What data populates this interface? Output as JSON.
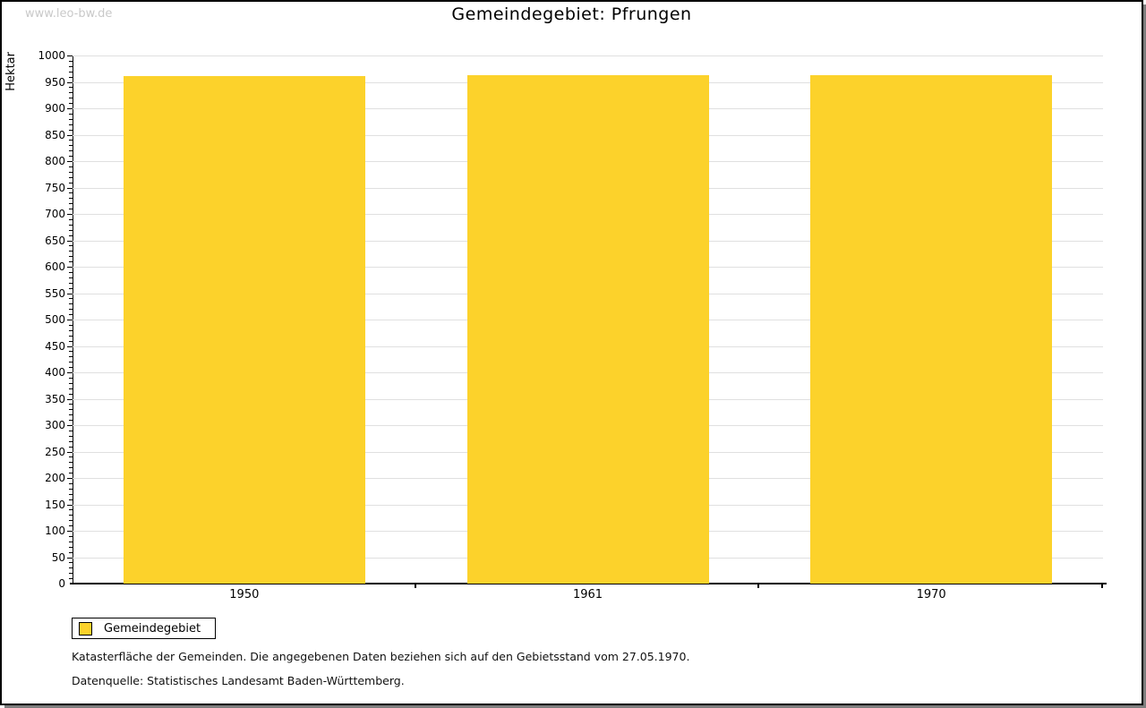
{
  "watermark": "www.leo-bw.de",
  "header": {
    "title": "Gemeindegebiet: Pfrungen"
  },
  "chart_data": {
    "type": "bar",
    "title": "Gemeindegebiet: Pfrungen",
    "categories": [
      "1950",
      "1961",
      "1970"
    ],
    "series": [
      {
        "name": "Gemeindegebiet",
        "values": [
          961,
          962,
          962
        ]
      }
    ],
    "xlabel": "",
    "ylabel": "Hektar",
    "ylim": [
      0,
      1000
    ],
    "y_major_step": 50,
    "y_minor_step": 10,
    "grid": true,
    "legend_position": "bottom-left",
    "bar_color": "#fcd22b",
    "grid_color": "#e0e0e0"
  },
  "legend": {
    "items": [
      {
        "label": "Gemeindegebiet",
        "color": "#fcd22b"
      }
    ]
  },
  "footer": {
    "line1": "Katasterfläche der Gemeinden. Die angegebenen Daten beziehen sich auf den Gebietsstand vom 27.05.1970.",
    "line2": "Datenquelle: Statistisches Landesamt Baden-Württemberg."
  }
}
